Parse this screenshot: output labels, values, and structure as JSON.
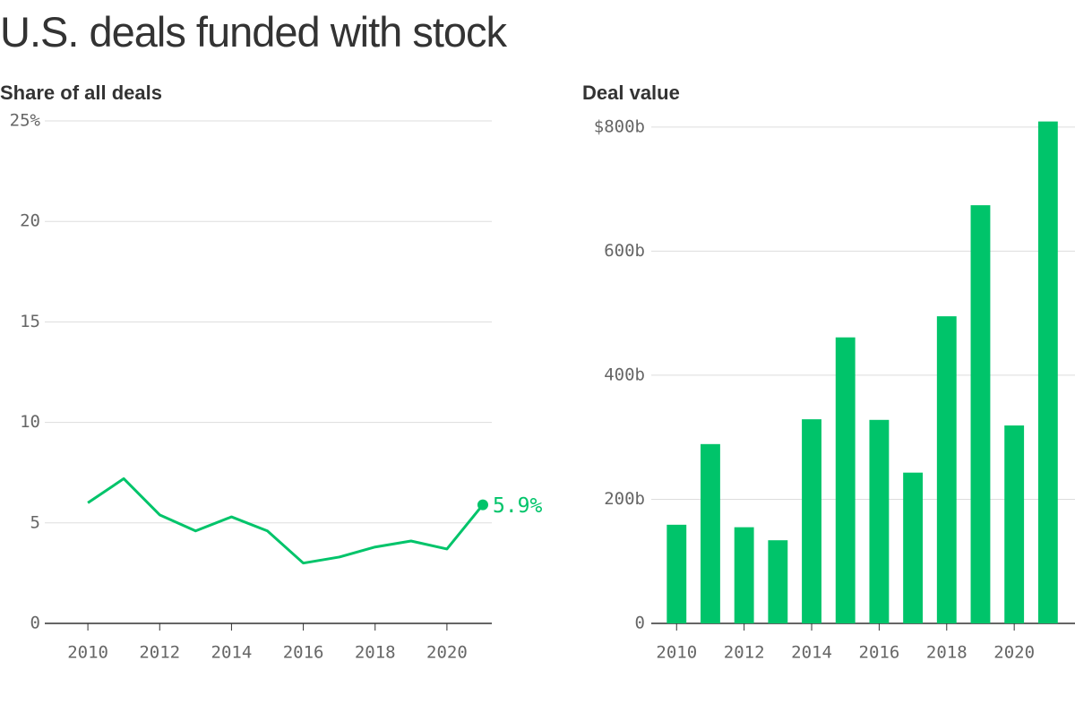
{
  "title": "U.S. deals funded with stock",
  "chart_data": [
    {
      "type": "line",
      "title": "Share of all deals",
      "color": "#00c46a",
      "x": [
        2010,
        2011,
        2012,
        2013,
        2014,
        2015,
        2016,
        2017,
        2018,
        2019,
        2020,
        2021
      ],
      "values": [
        6.0,
        7.2,
        5.4,
        4.6,
        5.3,
        4.6,
        3.0,
        3.3,
        3.8,
        4.1,
        3.7,
        5.9
      ],
      "value_labels": [
        null,
        null,
        null,
        null,
        null,
        null,
        null,
        null,
        null,
        null,
        null,
        "5.9%"
      ],
      "xlim": [
        2008.8,
        2021.25
      ],
      "xticks": [
        2010,
        2012,
        2014,
        2016,
        2018,
        2020
      ],
      "ylim": [
        0,
        25
      ],
      "yticks": [
        0,
        5,
        10,
        15,
        20,
        {
          "value": 25,
          "label": "25%"
        }
      ],
      "grid": true
    },
    {
      "type": "bar",
      "title": "Deal value",
      "color": "#00c46a",
      "x": [
        2010,
        2011,
        2012,
        2013,
        2014,
        2015,
        2016,
        2017,
        2018,
        2019,
        2020,
        2021
      ],
      "values": [
        159,
        289,
        155,
        134,
        329,
        461,
        328,
        243,
        495,
        674,
        319,
        809
      ],
      "xlim": [
        2009.25,
        2021.8
      ],
      "xticks": [
        2010,
        2012,
        2014,
        2016,
        2018,
        2020
      ],
      "ylim": [
        0,
        820
      ],
      "yticks": [
        0,
        {
          "value": 200,
          "label": "200b"
        },
        {
          "value": 400,
          "label": "400b"
        },
        {
          "value": 600,
          "label": "600b"
        },
        {
          "value": 800,
          "label": "$800b"
        }
      ],
      "grid": true
    }
  ]
}
